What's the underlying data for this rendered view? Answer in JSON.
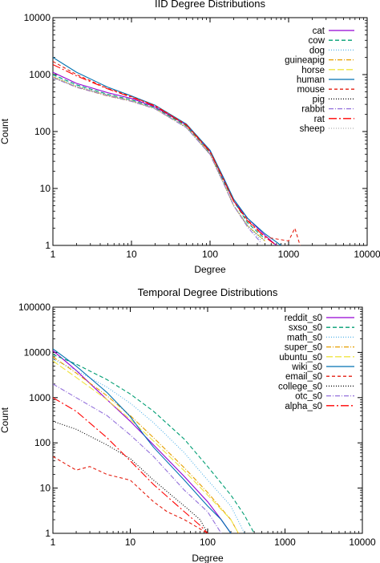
{
  "chart_data": [
    {
      "type": "line",
      "title": "IID Degree Distributions",
      "xlabel": "Degree",
      "ylabel": "Count",
      "xscale": "log",
      "yscale": "log",
      "xlim": [
        1,
        10000
      ],
      "ylim": [
        1,
        10000
      ],
      "xticks": [
        1,
        10,
        100,
        1000,
        10000
      ],
      "xtick_labels": [
        "1",
        "10",
        "100",
        "1000",
        "10000"
      ],
      "yticks": [
        1,
        10,
        100,
        1000,
        10000
      ],
      "ytick_labels": [
        "1",
        "10",
        "100",
        "1000",
        "10000"
      ],
      "grid": false,
      "legend": "top-right",
      "series": [
        {
          "name": "cat",
          "color": "#9400d3",
          "dash": "",
          "points": [
            [
              1,
              1100
            ],
            [
              2,
              700
            ],
            [
              5,
              480
            ],
            [
              10,
              380
            ],
            [
              20,
              270
            ],
            [
              50,
              130
            ],
            [
              100,
              45
            ],
            [
              150,
              14
            ],
            [
              200,
              6
            ],
            [
              300,
              3
            ],
            [
              500,
              1.5
            ],
            [
              700,
              1
            ]
          ]
        },
        {
          "name": "cow",
          "color": "#009e73",
          "dash": "5,3",
          "points": [
            [
              1,
              1000
            ],
            [
              2,
              660
            ],
            [
              5,
              450
            ],
            [
              10,
              360
            ],
            [
              20,
              260
            ],
            [
              50,
              125
            ],
            [
              100,
              42
            ],
            [
              150,
              13
            ],
            [
              200,
              6
            ],
            [
              300,
              2.5
            ],
            [
              500,
              1.3
            ]
          ]
        },
        {
          "name": "dog",
          "color": "#56b4e9",
          "dash": "1,2",
          "points": [
            [
              1,
              950
            ],
            [
              2,
              630
            ],
            [
              5,
              440
            ],
            [
              10,
              350
            ],
            [
              20,
              255
            ],
            [
              50,
              120
            ],
            [
              100,
              40
            ],
            [
              150,
              12
            ],
            [
              200,
              5
            ],
            [
              300,
              2.3
            ],
            [
              450,
              1.2
            ]
          ]
        },
        {
          "name": "guineapig",
          "color": "#e69f00",
          "dash": "6,2,1,2",
          "points": [
            [
              1,
              900
            ],
            [
              2,
              600
            ],
            [
              5,
              420
            ],
            [
              10,
              340
            ],
            [
              20,
              250
            ],
            [
              50,
              118
            ],
            [
              100,
              40
            ],
            [
              150,
              12
            ],
            [
              200,
              5
            ],
            [
              300,
              2.2
            ],
            [
              500,
              1.2
            ]
          ]
        },
        {
          "name": "horse",
          "color": "#f0e442",
          "dash": "8,3",
          "points": [
            [
              1,
              920
            ],
            [
              2,
              610
            ],
            [
              5,
              430
            ],
            [
              10,
              345
            ],
            [
              20,
              252
            ],
            [
              50,
              119
            ],
            [
              100,
              41
            ],
            [
              150,
              12
            ],
            [
              200,
              5
            ],
            [
              300,
              2.2
            ],
            [
              500,
              1.2
            ]
          ]
        },
        {
          "name": "human",
          "color": "#0072b2",
          "dash": "",
          "points": [
            [
              1,
              2000
            ],
            [
              2,
              1100
            ],
            [
              5,
              600
            ],
            [
              10,
              420
            ],
            [
              20,
              290
            ],
            [
              50,
              135
            ],
            [
              100,
              47
            ],
            [
              150,
              15
            ],
            [
              200,
              6.5
            ],
            [
              300,
              3
            ],
            [
              500,
              1.6
            ],
            [
              800,
              1
            ]
          ]
        },
        {
          "name": "mouse",
          "color": "#e51e10",
          "dash": "4,3",
          "points": [
            [
              1,
              1700
            ],
            [
              2,
              1000
            ],
            [
              5,
              570
            ],
            [
              10,
              410
            ],
            [
              20,
              285
            ],
            [
              50,
              132
            ],
            [
              100,
              45
            ],
            [
              150,
              14
            ],
            [
              200,
              6
            ],
            [
              300,
              2.8
            ],
            [
              500,
              1.4
            ],
            [
              1000,
              1.2
            ],
            [
              1200,
              2
            ],
            [
              1400,
              1
            ]
          ]
        },
        {
          "name": "pig",
          "color": "#000000",
          "dash": "1,2",
          "points": [
            [
              1,
              900
            ],
            [
              2,
              610
            ],
            [
              5,
              430
            ],
            [
              10,
              345
            ],
            [
              20,
              252
            ],
            [
              50,
              118
            ],
            [
              100,
              40
            ],
            [
              150,
              12
            ],
            [
              200,
              5
            ],
            [
              300,
              2.2
            ],
            [
              500,
              1.2
            ]
          ]
        },
        {
          "name": "rabbit",
          "color": "#9370db",
          "dash": "6,2,1,2",
          "points": [
            [
              1,
              880
            ],
            [
              2,
              600
            ],
            [
              5,
              425
            ],
            [
              10,
              340
            ],
            [
              20,
              250
            ],
            [
              50,
              117
            ],
            [
              100,
              40
            ],
            [
              150,
              12
            ],
            [
              200,
              5
            ],
            [
              300,
              2.1
            ],
            [
              450,
              1.1
            ]
          ]
        },
        {
          "name": "rat",
          "color": "#ff0000",
          "dash": "10,3,2,3",
          "points": [
            [
              1,
              1500
            ],
            [
              2,
              950
            ],
            [
              5,
              560
            ],
            [
              10,
              400
            ],
            [
              20,
              280
            ],
            [
              50,
              130
            ],
            [
              100,
              44
            ],
            [
              150,
              14
            ],
            [
              200,
              6
            ],
            [
              300,
              2.7
            ],
            [
              500,
              1.4
            ],
            [
              700,
              1
            ]
          ]
        },
        {
          "name": "sheep",
          "color": "#b0b0b0",
          "dash": "1,2",
          "points": [
            [
              1,
              910
            ],
            [
              2,
              615
            ],
            [
              5,
              432
            ],
            [
              10,
              346
            ],
            [
              20,
              253
            ],
            [
              50,
              119
            ],
            [
              100,
              41
            ],
            [
              150,
              12
            ],
            [
              200,
              5
            ],
            [
              300,
              2.2
            ],
            [
              500,
              1.2
            ]
          ]
        }
      ]
    },
    {
      "type": "line",
      "title": "Temporal Degree Distributions",
      "xlabel": "Degree",
      "ylabel": "Count",
      "xscale": "log",
      "yscale": "log",
      "xlim": [
        1,
        10000
      ],
      "ylim": [
        1,
        100000
      ],
      "xticks": [
        1,
        10,
        100,
        1000,
        10000
      ],
      "xtick_labels": [
        "1",
        "10",
        "100",
        "1000",
        "10000"
      ],
      "yticks": [
        1,
        10,
        100,
        1000,
        10000,
        100000
      ],
      "ytick_labels": [
        "1",
        "10",
        "100",
        "1000",
        "10000",
        "100000"
      ],
      "grid": false,
      "legend": "top-right",
      "series": [
        {
          "name": "reddit_s0",
          "color": "#9400d3",
          "dash": "",
          "points": [
            [
              1,
              11000
            ],
            [
              2,
              4000
            ],
            [
              5,
              900
            ],
            [
              10,
              300
            ],
            [
              20,
              90
            ],
            [
              50,
              18
            ],
            [
              100,
              5
            ],
            [
              150,
              2
            ],
            [
              200,
              1
            ]
          ]
        },
        {
          "name": "sxso_s0",
          "color": "#009e73",
          "dash": "5,3",
          "points": [
            [
              1,
              9000
            ],
            [
              2,
              5500
            ],
            [
              5,
              2500
            ],
            [
              10,
              1200
            ],
            [
              20,
              500
            ],
            [
              50,
              120
            ],
            [
              100,
              30
            ],
            [
              200,
              7
            ],
            [
              300,
              2.5
            ],
            [
              400,
              1
            ]
          ]
        },
        {
          "name": "math_s0",
          "color": "#56b4e9",
          "dash": "1,2",
          "points": [
            [
              1,
              7000
            ],
            [
              2,
              4000
            ],
            [
              5,
              1700
            ],
            [
              10,
              750
            ],
            [
              20,
              280
            ],
            [
              50,
              60
            ],
            [
              100,
              15
            ],
            [
              200,
              4
            ],
            [
              300,
              1
            ]
          ]
        },
        {
          "name": "super_s0",
          "color": "#e69f00",
          "dash": "6,2,1,2",
          "points": [
            [
              1,
              8000
            ],
            [
              2,
              3500
            ],
            [
              5,
              1100
            ],
            [
              10,
              400
            ],
            [
              20,
              130
            ],
            [
              50,
              28
            ],
            [
              100,
              8
            ],
            [
              200,
              2
            ],
            [
              250,
              1
            ]
          ]
        },
        {
          "name": "ubuntu_s0",
          "color": "#f0e442",
          "dash": "8,3",
          "points": [
            [
              1,
              6500
            ],
            [
              2,
              2800
            ],
            [
              5,
              900
            ],
            [
              10,
              330
            ],
            [
              20,
              110
            ],
            [
              50,
              24
            ],
            [
              100,
              7
            ],
            [
              200,
              2
            ],
            [
              250,
              1
            ]
          ]
        },
        {
          "name": "wiki_s0",
          "color": "#0072b2",
          "dash": "",
          "points": [
            [
              1,
              12000
            ],
            [
              2,
              5000
            ],
            [
              5,
              1300
            ],
            [
              10,
              380
            ],
            [
              15,
              150
            ],
            [
              20,
              80
            ],
            [
              50,
              15
            ],
            [
              100,
              4
            ],
            [
              150,
              2
            ],
            [
              200,
              1
            ]
          ]
        },
        {
          "name": "email_s0",
          "color": "#e51e10",
          "dash": "4,3",
          "points": [
            [
              1,
              50
            ],
            [
              2,
              25
            ],
            [
              3,
              30
            ],
            [
              5,
              20
            ],
            [
              10,
              15
            ],
            [
              20,
              5
            ],
            [
              30,
              3
            ],
            [
              50,
              2
            ],
            [
              100,
              1
            ]
          ]
        },
        {
          "name": "college_s0",
          "color": "#000000",
          "dash": "1,2",
          "points": [
            [
              1,
              300
            ],
            [
              2,
              200
            ],
            [
              5,
              90
            ],
            [
              10,
              45
            ],
            [
              20,
              15
            ],
            [
              50,
              4
            ],
            [
              80,
              2
            ],
            [
              100,
              1
            ]
          ]
        },
        {
          "name": "otc_s0",
          "color": "#9370db",
          "dash": "6,2,1,2",
          "points": [
            [
              1,
              2000
            ],
            [
              2,
              1000
            ],
            [
              5,
              400
            ],
            [
              10,
              150
            ],
            [
              20,
              50
            ],
            [
              50,
              9
            ],
            [
              100,
              3
            ],
            [
              150,
              1
            ]
          ]
        },
        {
          "name": "alpha_s0",
          "color": "#ff0000",
          "dash": "10,3,2,3",
          "points": [
            [
              1,
              1000
            ],
            [
              2,
              500
            ],
            [
              5,
              130
            ],
            [
              10,
              40
            ],
            [
              20,
              12
            ],
            [
              50,
              3
            ],
            [
              80,
              1.5
            ],
            [
              100,
              1
            ]
          ]
        }
      ]
    }
  ]
}
